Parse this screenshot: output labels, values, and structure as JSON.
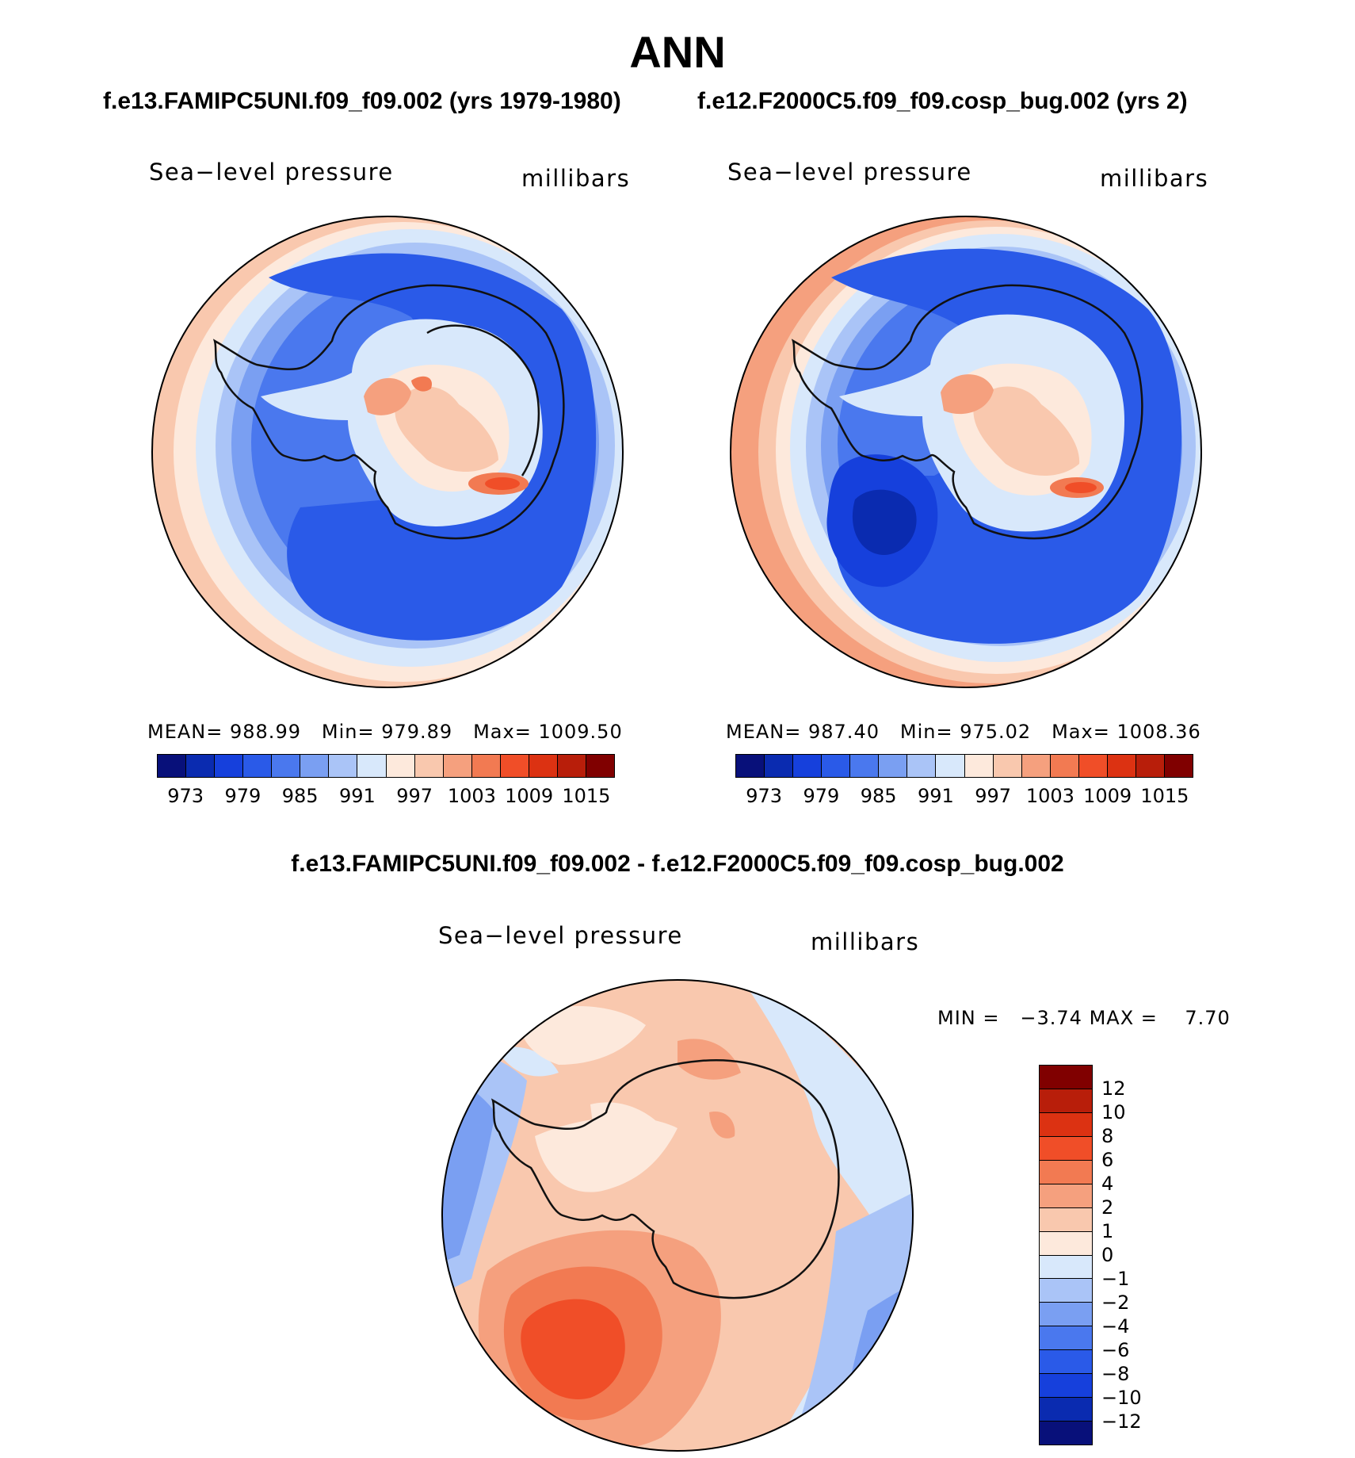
{
  "main_title": "ANN",
  "panel_left": {
    "case_title": "f.e13.FAMIPC5UNI.f09_f09.002 (yrs 1979-1980)",
    "var_name": "Sea−level pressure",
    "units": "millibars",
    "stats": {
      "mean_label": "MEAN=",
      "mean": "988.99",
      "min_label": "Min=",
      "min": "979.89",
      "max_label": "Max=",
      "max": "1009.50"
    }
  },
  "panel_right": {
    "case_title": "f.e12.F2000C5.f09_f09.cosp_bug.002 (yrs 2)",
    "var_name": "Sea−level pressure",
    "units": "millibars",
    "stats": {
      "mean_label": "MEAN=",
      "mean": "987.40",
      "min_label": "Min=",
      "min": "975.02",
      "max_label": "Max=",
      "max": "1008.36"
    }
  },
  "colorbar_abs": {
    "colors": [
      "#08107a",
      "#0a2bb0",
      "#1640dc",
      "#2a5ae8",
      "#4a78ee",
      "#7a9ff2",
      "#aac4f7",
      "#d8e8fb",
      "#fde9dc",
      "#f9c8ae",
      "#f5a07e",
      "#f27a52",
      "#f04e28",
      "#dc3212",
      "#b81e0a",
      "#800000"
    ],
    "ticks": [
      "973",
      "979",
      "985",
      "991",
      "997",
      "1003",
      "1009",
      "1015"
    ]
  },
  "panel_diff": {
    "title": "f.e13.FAMIPC5UNI.f09_f09.002 - f.e12.F2000C5.f09_f09.cosp_bug.002",
    "var_name": "Sea−level pressure",
    "units": "millibars",
    "min_label": "MIN =",
    "min": "−3.74",
    "max_label": "MAX =",
    "max": "7.70"
  },
  "colorbar_diff": {
    "colors_top_to_bottom": [
      "#800000",
      "#b81e0a",
      "#dc3212",
      "#f04e28",
      "#f27a52",
      "#f5a07e",
      "#f9c8ae",
      "#fde9dc",
      "#d8e8fb",
      "#aac4f7",
      "#7a9ff2",
      "#4a78ee",
      "#2a5ae8",
      "#1640dc",
      "#0a2bb0",
      "#08107a"
    ],
    "ticks": [
      "12",
      "10",
      "8",
      "6",
      "4",
      "2",
      "1",
      "0",
      "−1",
      "−2",
      "−4",
      "−6",
      "−8",
      "−10",
      "−12"
    ]
  }
}
